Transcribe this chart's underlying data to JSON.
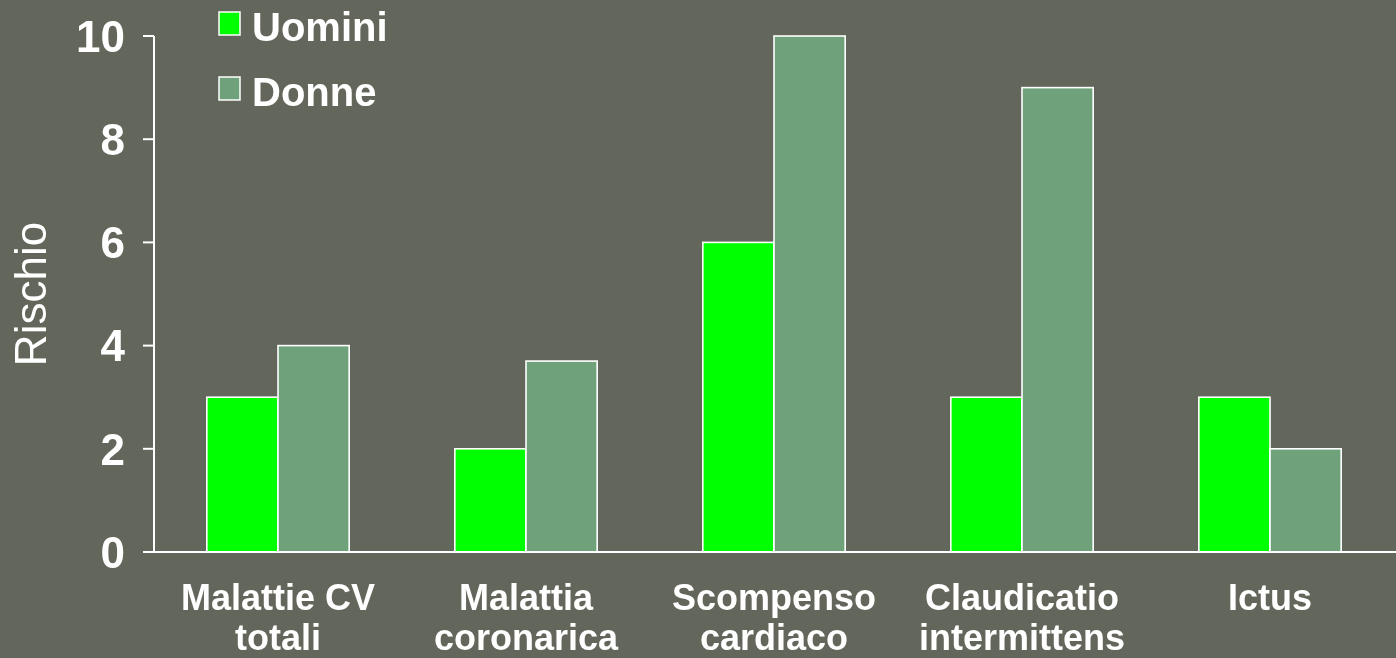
{
  "chart_data": {
    "type": "bar",
    "ylabel": "Rischio",
    "categories": [
      "Malattie CV totali",
      "Malattia coronarica",
      "Scompenso cardiaco",
      "Claudicatio intermittens",
      "Ictus"
    ],
    "series": [
      {
        "name": "Uomini",
        "color": "#00ff00",
        "values": [
          3,
          2,
          6,
          3,
          3
        ]
      },
      {
        "name": "Donne",
        "color": "#6fa27a",
        "values": [
          4,
          3.7,
          10,
          9,
          2
        ]
      }
    ],
    "ylim": [
      0,
      10
    ],
    "yticks": [
      0,
      2,
      4,
      6,
      8,
      10
    ],
    "legend": "top left"
  }
}
